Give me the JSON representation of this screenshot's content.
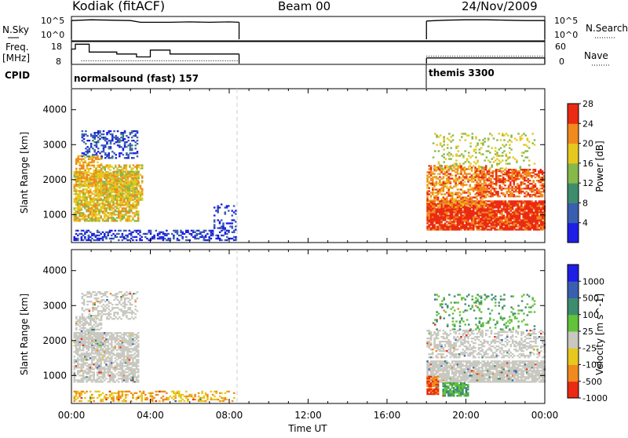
{
  "header": {
    "station": "Kodiak (fitACF)",
    "beam": "Beam 00",
    "date": "24/Nov/2009"
  },
  "chart_data": [
    {
      "type": "line",
      "panel": "noise",
      "left_label": "N.Sky",
      "right_label": "N.Search",
      "left_ticks": [
        "10^5",
        "10^0"
      ],
      "right_ticks": [
        "10^5",
        "10^0"
      ],
      "segments": [
        {
          "x": [
            0,
            0.5,
            1,
            2,
            3,
            3.5,
            4,
            5,
            6,
            7,
            8,
            8.5
          ],
          "y": [
            4.4,
            4.5,
            4.6,
            4.5,
            4.4,
            4.0,
            4.0,
            4.0,
            4.1,
            4.0,
            4.1,
            4.0
          ]
        },
        {
          "x": [
            18,
            18.5,
            19,
            20,
            21,
            22,
            23,
            24
          ],
          "y": [
            4.3,
            4.4,
            4.5,
            4.6,
            4.6,
            4.5,
            4.4,
            4.4
          ]
        }
      ]
    },
    {
      "type": "line",
      "panel": "frequency",
      "left_label": "Freq.",
      "left_unit": "[MHz]",
      "right_label": "Nave",
      "left_ticks": [
        "18",
        "8"
      ],
      "right_ticks": [
        "60",
        "0"
      ],
      "ylim": [
        8,
        18
      ],
      "segments": [
        {
          "x": [
            0,
            0.2,
            0.2,
            0.9,
            0.9,
            2.3,
            2.3,
            3.3,
            3.3,
            4.0,
            4.0,
            5.0,
            5.0,
            8.5
          ],
          "y": [
            15.0,
            15.0,
            17.5,
            17.5,
            13.5,
            13.5,
            12.5,
            12.5,
            11.0,
            11.0,
            14.5,
            14.5,
            12.5,
            12.5
          ]
        },
        {
          "x": [
            18,
            24
          ],
          "y": [
            10.5,
            10.5
          ]
        }
      ],
      "nave_dotted": [
        {
          "x": [
            18,
            24
          ],
          "y": [
            22,
            22
          ]
        },
        {
          "x": [
            0.5,
            8.5
          ],
          "y": [
            8,
            8
          ]
        }
      ]
    },
    {
      "type": "table",
      "panel": "cpid",
      "label": "CPID",
      "entries": [
        {
          "start": 0,
          "end": 8.5,
          "text": "normalsound (fast) 157"
        },
        {
          "start": 18,
          "end": 24,
          "text": "themis 3300"
        }
      ]
    },
    {
      "type": "heatmap",
      "panel": "power",
      "ylabel": "Slant Range [km]",
      "yticks": [
        "1000",
        "2000",
        "3000",
        "4000"
      ],
      "ylim": [
        200,
        4600
      ],
      "xlim": [
        0,
        24
      ],
      "colorbar": {
        "label": "Power [dB]",
        "ticks": [
          "4",
          "8",
          "12",
          "16",
          "20",
          "24",
          "28"
        ],
        "colors": [
          "#1e1ee6",
          "#3a5fb0",
          "#3d8c6e",
          "#86b84a",
          "#e6c81e",
          "#f08a1e",
          "#ea2a12"
        ]
      },
      "regions": [
        {
          "t0": 0.1,
          "t1": 3.4,
          "r0": 800,
          "r1": 2200,
          "level": 20,
          "density": 0.75
        },
        {
          "t0": 0.2,
          "t1": 1.5,
          "r0": 1800,
          "r1": 2700,
          "level": 22,
          "density": 0.6
        },
        {
          "t0": 1.2,
          "t1": 3.6,
          "r0": 1400,
          "r1": 2400,
          "level": 20,
          "density": 0.55
        },
        {
          "t0": 0.5,
          "t1": 3.3,
          "r0": 2600,
          "r1": 3400,
          "level": 7,
          "density": 0.35
        },
        {
          "t0": 0.1,
          "t1": 8.3,
          "r0": 250,
          "r1": 550,
          "level": 6,
          "density": 0.45
        },
        {
          "t0": 7.2,
          "t1": 8.3,
          "r0": 550,
          "r1": 1300,
          "level": 6,
          "density": 0.25
        },
        {
          "t0": 18.0,
          "t1": 24.0,
          "r0": 550,
          "r1": 1400,
          "level": 28,
          "density": 0.9
        },
        {
          "t0": 18.0,
          "t1": 21.0,
          "r0": 1200,
          "r1": 2400,
          "level": 24,
          "density": 0.55
        },
        {
          "t0": 20.5,
          "t1": 24.0,
          "r0": 1500,
          "r1": 2300,
          "level": 26,
          "density": 0.6
        },
        {
          "t0": 18.3,
          "t1": 23.5,
          "r0": 2300,
          "r1": 3300,
          "level": 18,
          "density": 0.18
        }
      ]
    },
    {
      "type": "heatmap",
      "panel": "velocity",
      "ylabel": "Slant Range [km]",
      "yticks": [
        "1000",
        "2000",
        "3000",
        "4000"
      ],
      "ylim": [
        200,
        4600
      ],
      "xlim": [
        0,
        24
      ],
      "colorbar": {
        "label": "Velocity [m s^-1]",
        "ticks": [
          "1000",
          "500",
          "100",
          "25",
          "-25",
          "-100",
          "-500",
          "-1000"
        ],
        "colors": [
          "#1e1ee6",
          "#3a5fb0",
          "#3d8c6e",
          "#62c23a",
          "#c8c8c0",
          "#e6c81e",
          "#f08a1e",
          "#ea2a12"
        ]
      },
      "x_ticks": [
        "00:00",
        "04:00",
        "08:00",
        "12:00",
        "16:00",
        "20:00",
        "00:00"
      ],
      "xlabel": "Time UT",
      "regions": [
        {
          "t0": 0.1,
          "t1": 3.4,
          "r0": 800,
          "r1": 2200,
          "level": 0,
          "density": 0.7
        },
        {
          "t0": 0.2,
          "t1": 1.5,
          "r0": 1800,
          "r1": 2700,
          "level": 0,
          "density": 0.55
        },
        {
          "t0": 0.5,
          "t1": 3.3,
          "r0": 2600,
          "r1": 3400,
          "level": 0,
          "density": 0.35
        },
        {
          "t0": 0.1,
          "t1": 8.3,
          "r0": 250,
          "r1": 550,
          "level": -60,
          "density": 0.35
        },
        {
          "t0": 18.0,
          "t1": 24.0,
          "r0": 800,
          "r1": 1400,
          "level": 0,
          "density": 0.85
        },
        {
          "t0": 18.0,
          "t1": 18.6,
          "r0": 450,
          "r1": 950,
          "level": -300,
          "density": 0.8
        },
        {
          "t0": 18.8,
          "t1": 20.1,
          "r0": 400,
          "r1": 800,
          "level": 60,
          "density": 0.85
        },
        {
          "t0": 18.0,
          "t1": 24.0,
          "r0": 1500,
          "r1": 2300,
          "level": 0,
          "density": 0.45
        },
        {
          "t0": 18.3,
          "t1": 23.5,
          "r0": 2300,
          "r1": 3300,
          "level": 60,
          "density": 0.15
        }
      ]
    }
  ]
}
